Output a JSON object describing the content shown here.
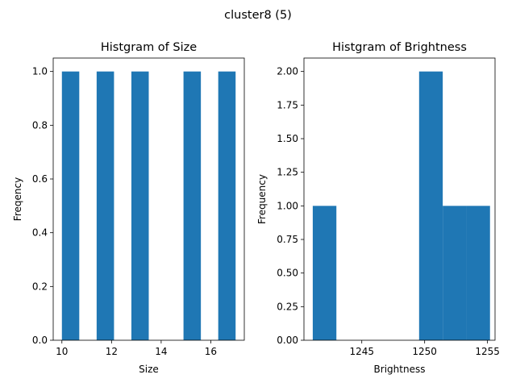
{
  "figure": {
    "suptitle": "cluster8 (5)"
  },
  "colors": {
    "bar": "#1f77b4",
    "axis": "#000000",
    "background": "#ffffff"
  },
  "chart_data": [
    {
      "type": "bar",
      "title": "Histgram of Size",
      "xlabel": "Size",
      "ylabel": "Freqency",
      "xlim": [
        9.65,
        17.35
      ],
      "ylim": [
        0,
        1.05
      ],
      "xticks": [
        10,
        12,
        14,
        16
      ],
      "xtick_labels": [
        "10",
        "12",
        "14",
        "16"
      ],
      "yticks": [
        0.0,
        0.2,
        0.4,
        0.6,
        0.8,
        1.0
      ],
      "ytick_labels": [
        "0.0",
        "0.2",
        "0.4",
        "0.6",
        "0.8",
        "1.0"
      ],
      "bins": [
        {
          "x0": 10.0,
          "x1": 10.7,
          "count": 1
        },
        {
          "x0": 11.4,
          "x1": 12.1,
          "count": 1
        },
        {
          "x0": 12.8,
          "x1": 13.5,
          "count": 1
        },
        {
          "x0": 14.9,
          "x1": 15.6,
          "count": 1
        },
        {
          "x0": 16.3,
          "x1": 17.0,
          "count": 1
        }
      ]
    },
    {
      "type": "bar",
      "title": "Histgram of Brightness",
      "xlabel": "Brightness",
      "ylabel": "Frequency",
      "xlim": [
        1240.4,
        1255.6
      ],
      "ylim": [
        0,
        2.1
      ],
      "xticks": [
        1245,
        1250,
        1255
      ],
      "xtick_labels": [
        "1245",
        "1250",
        "1255"
      ],
      "yticks": [
        0.0,
        0.25,
        0.5,
        0.75,
        1.0,
        1.25,
        1.5,
        1.75,
        2.0
      ],
      "ytick_labels": [
        "0.00",
        "0.25",
        "0.50",
        "0.75",
        "1.00",
        "1.25",
        "1.50",
        "1.75",
        "2.00"
      ],
      "bins": [
        {
          "x0": 1241.1,
          "x1": 1242.98,
          "count": 1
        },
        {
          "x0": 1249.56,
          "x1": 1251.44,
          "count": 2
        },
        {
          "x0": 1251.44,
          "x1": 1253.32,
          "count": 1
        },
        {
          "x0": 1253.32,
          "x1": 1255.2,
          "count": 1
        }
      ]
    }
  ]
}
